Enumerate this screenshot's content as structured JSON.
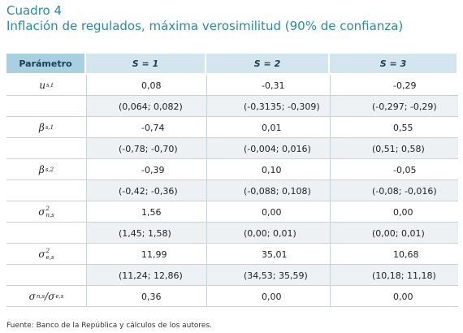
{
  "header": {
    "label": "Cuadro 4",
    "title": "Inflación de regulados, máxima verosimilitud (90% de confianza)"
  },
  "table": {
    "columns": [
      "Parámetro",
      "S = 1",
      "S = 2",
      "S = 3"
    ],
    "rows": [
      {
        "param": [
          {
            "t": "u",
            "sub": "s,t"
          }
        ],
        "values": [
          "0,08",
          "-0,31",
          "-0,29"
        ],
        "interval": [
          "(0,064; 0,082)",
          "(-0,3135; -0,309)",
          "(-0,297; -0,29)"
        ]
      },
      {
        "param": [
          {
            "t": "β",
            "sub": "s,1"
          }
        ],
        "values": [
          "-0,74",
          "0,01",
          "0,55"
        ],
        "interval": [
          "(-0,78; -0,70)",
          "(-0,004; 0,016)",
          "(0,51; 0,58)"
        ]
      },
      {
        "param": [
          {
            "t": "β",
            "sub": "s,2"
          }
        ],
        "values": [
          "-0,39",
          "0,10",
          "-0,05"
        ],
        "interval": [
          "(-0,42; -0,36)",
          "(-0,088; 0,108)",
          "(-0,08; -0,016)"
        ]
      },
      {
        "param": [
          {
            "t": "σ",
            "sup": "2",
            "sub": "n,s"
          }
        ],
        "values": [
          "1,56",
          "0,00",
          "0,00"
        ],
        "interval": [
          "(1,45; 1,58)",
          "(0,00; 0,01)",
          "(0,00; 0,01)"
        ]
      },
      {
        "param": [
          {
            "t": "σ",
            "sup": "2",
            "sub": "e,s"
          }
        ],
        "values": [
          "11,99",
          "35,01",
          "10,68"
        ],
        "interval": [
          "(11,24; 12,86)",
          "(34,53; 35,59)",
          "(10,18; 11,18)"
        ]
      },
      {
        "param": [
          {
            "t": "σ",
            "sub": "n,s"
          },
          {
            "t": "/ "
          },
          {
            "t": "σ",
            "sub": "e,s"
          }
        ],
        "values": [
          "0,36",
          "0,00",
          "0,00"
        ]
      }
    ]
  },
  "footer": {
    "source": "Fuente: Banco de la República y cálculos de los autores."
  }
}
